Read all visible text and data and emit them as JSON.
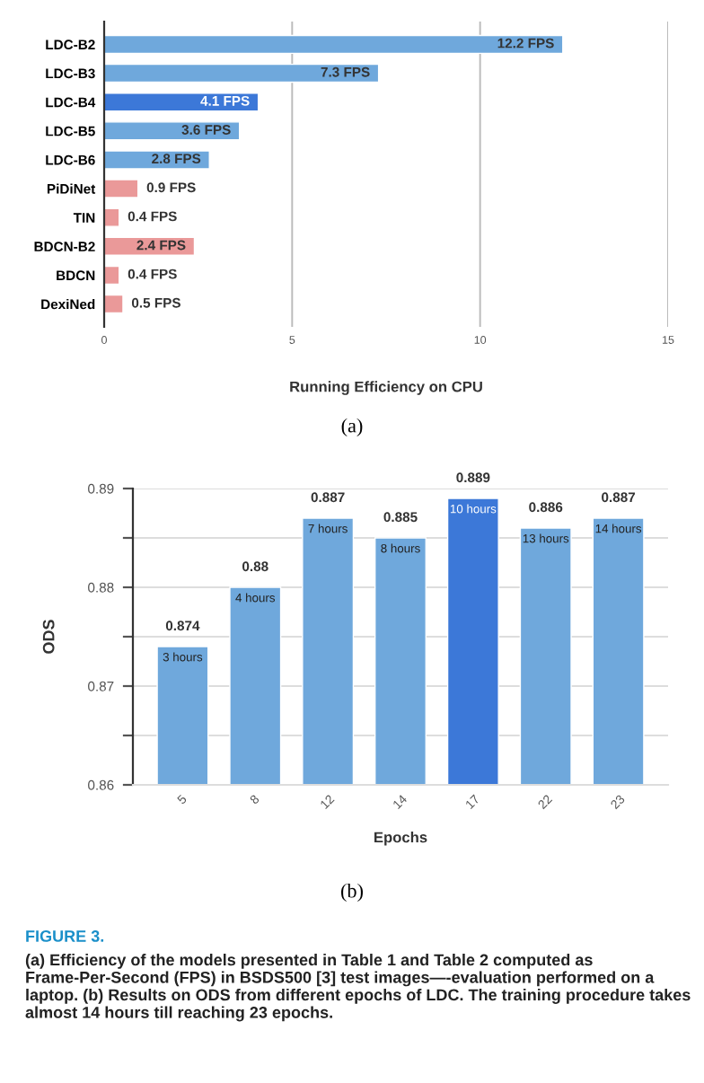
{
  "chart_data": [
    {
      "type": "bar",
      "orientation": "horizontal",
      "xlabel": "Running Efficiency on CPU",
      "categories": [
        "LDC-B2",
        "LDC-B3",
        "LDC-B4",
        "LDC-B5",
        "LDC-B6",
        "PiDiNet",
        "TIN",
        "BDCN-B2",
        "BDCN",
        "DexiNed"
      ],
      "values": [
        12.2,
        7.3,
        4.1,
        3.6,
        2.8,
        0.9,
        0.4,
        2.4,
        0.4,
        0.5
      ],
      "colors": [
        "#6fa8dc",
        "#6fa8dc",
        "#3c78d8",
        "#6fa8dc",
        "#6fa8dc",
        "#ea9999",
        "#ea9999",
        "#ea9999",
        "#ea9999",
        "#ea9999"
      ],
      "value_labels": [
        "12.2 FPS",
        "7.3 FPS",
        "4.1 FPS",
        "3.6 FPS",
        "2.8 FPS",
        "0.9 FPS",
        "0.4 FPS",
        "2.4 FPS",
        "0.4 FPS",
        "0.5 FPS"
      ],
      "xlim": [
        0,
        15
      ],
      "xticks": [
        0,
        5,
        10,
        15
      ],
      "grid": "x",
      "annotations": [
        "(a)"
      ]
    },
    {
      "type": "bar",
      "xlabel": "Epochs",
      "ylabel": "ODS",
      "categories": [
        "5",
        "8",
        "12",
        "14",
        "17",
        "22",
        "23"
      ],
      "values": [
        0.874,
        0.88,
        0.887,
        0.885,
        0.889,
        0.886,
        0.887
      ],
      "colors": [
        "#6fa8dc",
        "#6fa8dc",
        "#6fa8dc",
        "#6fa8dc",
        "#3c78d8",
        "#6fa8dc",
        "#6fa8dc"
      ],
      "data_labels": true,
      "ylim": [
        0.86,
        0.89
      ],
      "yticks": [
        0.86,
        {
          "value": 0.865,
          "label": null
        },
        0.87,
        {
          "value": 0.875,
          "label": null
        },
        0.88,
        {
          "value": 0.885,
          "label": null
        },
        0.89
      ],
      "grid": "y",
      "annotations": [
        {
          "text": "3 hours",
          "x": "5",
          "y": 0.874
        },
        {
          "text": "4 hours",
          "x": "8",
          "y": 0.88
        },
        {
          "text": "7 hours",
          "x": "12",
          "y": 0.887
        },
        {
          "text": "8 hours",
          "x": "14",
          "y": 0.885
        },
        {
          "text": "10 hours",
          "x": "17",
          "y": 0.889
        },
        {
          "text": "13 hours",
          "x": "22",
          "y": 0.886
        },
        {
          "text": "14 hours",
          "x": "23",
          "y": 0.887
        },
        "(b)",
        "FIGURE 3.",
        "(a) Efficiency of the models presented in Table 1 and Table 2 computed as Frame-Per-Second (FPS) in BSDS500 [3] test images—-evaluation performed on a laptop. (b) Results on ODS from different epochs of LDC. The training procedure takes almost 14 hours till reaching 23 epochs."
      ]
    }
  ]
}
